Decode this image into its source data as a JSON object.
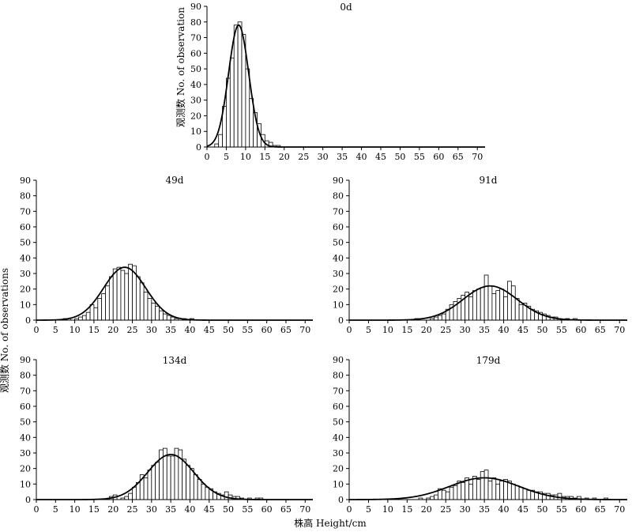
{
  "figure": {
    "ylabel_top": "观测数  No. of observation",
    "ylabel_left": "观测数  No. of observations",
    "xlabel": "株高  Height/cm"
  },
  "chart_data": [
    {
      "type": "bar",
      "title": "0d",
      "xlim": [
        0,
        72
      ],
      "ylim": [
        0,
        90
      ],
      "xticks": [
        0,
        5,
        10,
        15,
        20,
        25,
        30,
        35,
        40,
        45,
        50,
        55,
        60,
        65,
        70
      ],
      "yticks": [
        0,
        10,
        20,
        30,
        40,
        50,
        60,
        70,
        80,
        90
      ],
      "bin_width": 1,
      "bins": [
        [
          2.5,
          2
        ],
        [
          3.5,
          8
        ],
        [
          4.5,
          26
        ],
        [
          5.5,
          44
        ],
        [
          6.5,
          57
        ],
        [
          7.5,
          78
        ],
        [
          8.5,
          80
        ],
        [
          9.5,
          72
        ],
        [
          10.5,
          50
        ],
        [
          11.5,
          31
        ],
        [
          12.5,
          22
        ],
        [
          13.5,
          15
        ],
        [
          14.5,
          8
        ],
        [
          15.5,
          4
        ],
        [
          16.5,
          3
        ],
        [
          17.5,
          1
        ],
        [
          18.5,
          1
        ]
      ],
      "fit": {
        "mean": 8.2,
        "sd": 2.6,
        "peak": 78
      }
    },
    {
      "type": "bar",
      "title": "49d",
      "xlim": [
        0,
        72
      ],
      "ylim": [
        0,
        90
      ],
      "xticks": [
        0,
        5,
        10,
        15,
        20,
        25,
        30,
        35,
        40,
        45,
        50,
        55,
        60,
        65,
        70
      ],
      "yticks": [
        0,
        10,
        20,
        30,
        40,
        50,
        60,
        70,
        80,
        90
      ],
      "bin_width": 1,
      "bins": [
        [
          7.5,
          1
        ],
        [
          8.5,
          1
        ],
        [
          10.5,
          1
        ],
        [
          11.5,
          2
        ],
        [
          12.5,
          3
        ],
        [
          13.5,
          5
        ],
        [
          14.5,
          10
        ],
        [
          15.5,
          8
        ],
        [
          16.5,
          14
        ],
        [
          17.5,
          17
        ],
        [
          18.5,
          22
        ],
        [
          19.5,
          28
        ],
        [
          20.5,
          33
        ],
        [
          21.5,
          34
        ],
        [
          22.5,
          32
        ],
        [
          23.5,
          30
        ],
        [
          24.5,
          36
        ],
        [
          25.5,
          35
        ],
        [
          26.5,
          28
        ],
        [
          27.5,
          24
        ],
        [
          28.5,
          18
        ],
        [
          29.5,
          14
        ],
        [
          30.5,
          11
        ],
        [
          31.5,
          9
        ],
        [
          32.5,
          6
        ],
        [
          33.5,
          4
        ],
        [
          34.5,
          3
        ],
        [
          35.5,
          2
        ],
        [
          36.5,
          1
        ],
        [
          37.5,
          1
        ],
        [
          38.5,
          1
        ],
        [
          40.5,
          1
        ]
      ],
      "fit": {
        "mean": 23,
        "sd": 5.5,
        "peak": 34
      }
    },
    {
      "type": "bar",
      "title": "91d",
      "xlim": [
        0,
        72
      ],
      "ylim": [
        0,
        90
      ],
      "xticks": [
        0,
        5,
        10,
        15,
        20,
        25,
        30,
        35,
        40,
        45,
        50,
        55,
        60,
        65,
        70
      ],
      "yticks": [
        0,
        10,
        20,
        30,
        40,
        50,
        60,
        70,
        80,
        90
      ],
      "bin_width": 1,
      "bins": [
        [
          17.5,
          1
        ],
        [
          21.5,
          1
        ],
        [
          22.5,
          2
        ],
        [
          23.5,
          3
        ],
        [
          24.5,
          4
        ],
        [
          25.5,
          7
        ],
        [
          26.5,
          10
        ],
        [
          27.5,
          12
        ],
        [
          28.5,
          14
        ],
        [
          29.5,
          16
        ],
        [
          30.5,
          18
        ],
        [
          31.5,
          15
        ],
        [
          32.5,
          19
        ],
        [
          33.5,
          20
        ],
        [
          34.5,
          21
        ],
        [
          35.5,
          29
        ],
        [
          36.5,
          22
        ],
        [
          37.5,
          17
        ],
        [
          38.5,
          19
        ],
        [
          39.5,
          20
        ],
        [
          40.5,
          15
        ],
        [
          41.5,
          25
        ],
        [
          42.5,
          22
        ],
        [
          43.5,
          14
        ],
        [
          44.5,
          10
        ],
        [
          45.5,
          11
        ],
        [
          46.5,
          9
        ],
        [
          47.5,
          7
        ],
        [
          48.5,
          6
        ],
        [
          49.5,
          5
        ],
        [
          50.5,
          4
        ],
        [
          51.5,
          3
        ],
        [
          52.5,
          2
        ],
        [
          53.5,
          2
        ],
        [
          54.5,
          1
        ],
        [
          56.5,
          1
        ],
        [
          58.5,
          1
        ]
      ],
      "fit": {
        "mean": 36.5,
        "sd": 7,
        "peak": 22
      }
    },
    {
      "type": "bar",
      "title": "134d",
      "xlim": [
        0,
        72
      ],
      "ylim": [
        0,
        90
      ],
      "xticks": [
        0,
        5,
        10,
        15,
        20,
        25,
        30,
        35,
        40,
        45,
        50,
        55,
        60,
        65,
        70
      ],
      "yticks": [
        0,
        10,
        20,
        30,
        40,
        50,
        60,
        70,
        80,
        90
      ],
      "bin_width": 1,
      "bins": [
        [
          19.5,
          2
        ],
        [
          20.5,
          3
        ],
        [
          22.5,
          1
        ],
        [
          23.5,
          2
        ],
        [
          24.5,
          4
        ],
        [
          25.5,
          8
        ],
        [
          26.5,
          11
        ],
        [
          27.5,
          16
        ],
        [
          28.5,
          14
        ],
        [
          29.5,
          19
        ],
        [
          30.5,
          22
        ],
        [
          31.5,
          24
        ],
        [
          32.5,
          32
        ],
        [
          33.5,
          33
        ],
        [
          34.5,
          28
        ],
        [
          35.5,
          28
        ],
        [
          36.5,
          33
        ],
        [
          37.5,
          32
        ],
        [
          38.5,
          26
        ],
        [
          39.5,
          22
        ],
        [
          40.5,
          20
        ],
        [
          41.5,
          16
        ],
        [
          42.5,
          13
        ],
        [
          43.5,
          10
        ],
        [
          44.5,
          8
        ],
        [
          45.5,
          7
        ],
        [
          46.5,
          5
        ],
        [
          47.5,
          4
        ],
        [
          48.5,
          3
        ],
        [
          49.5,
          5
        ],
        [
          50.5,
          3
        ],
        [
          51.5,
          2
        ],
        [
          52.5,
          2
        ],
        [
          53.5,
          1
        ],
        [
          55.5,
          1
        ],
        [
          57.5,
          1
        ],
        [
          58.5,
          1
        ]
      ],
      "fit": {
        "mean": 35,
        "sd": 6,
        "peak": 29
      }
    },
    {
      "type": "bar",
      "title": "179d",
      "xlim": [
        0,
        72
      ],
      "ylim": [
        0,
        90
      ],
      "xticks": [
        0,
        5,
        10,
        15,
        20,
        25,
        30,
        35,
        40,
        45,
        50,
        55,
        60,
        65,
        70
      ],
      "yticks": [
        0,
        10,
        20,
        30,
        40,
        50,
        60,
        70,
        80,
        90
      ],
      "bin_width": 1,
      "bins": [
        [
          18.5,
          1
        ],
        [
          20.5,
          1
        ],
        [
          21.5,
          2
        ],
        [
          22.5,
          3
        ],
        [
          23.5,
          7
        ],
        [
          24.5,
          6
        ],
        [
          25.5,
          5
        ],
        [
          26.5,
          8
        ],
        [
          27.5,
          9
        ],
        [
          28.5,
          12
        ],
        [
          29.5,
          11
        ],
        [
          30.5,
          14
        ],
        [
          31.5,
          10
        ],
        [
          32.5,
          15
        ],
        [
          33.5,
          13
        ],
        [
          34.5,
          18
        ],
        [
          35.5,
          19
        ],
        [
          36.5,
          12
        ],
        [
          37.5,
          14
        ],
        [
          38.5,
          10
        ],
        [
          39.5,
          12
        ],
        [
          40.5,
          13
        ],
        [
          41.5,
          12
        ],
        [
          42.5,
          10
        ],
        [
          43.5,
          9
        ],
        [
          44.5,
          8
        ],
        [
          45.5,
          7
        ],
        [
          46.5,
          6
        ],
        [
          47.5,
          6
        ],
        [
          48.5,
          5
        ],
        [
          49.5,
          5
        ],
        [
          50.5,
          4
        ],
        [
          51.5,
          4
        ],
        [
          52.5,
          3
        ],
        [
          53.5,
          3
        ],
        [
          54.5,
          4
        ],
        [
          55.5,
          2
        ],
        [
          56.5,
          2
        ],
        [
          57.5,
          2
        ],
        [
          58.5,
          1
        ],
        [
          59.5,
          2
        ],
        [
          61.5,
          1
        ],
        [
          63.5,
          1
        ],
        [
          66.5,
          1
        ]
      ],
      "fit": {
        "mean": 35,
        "sd": 9,
        "peak": 14
      }
    }
  ]
}
